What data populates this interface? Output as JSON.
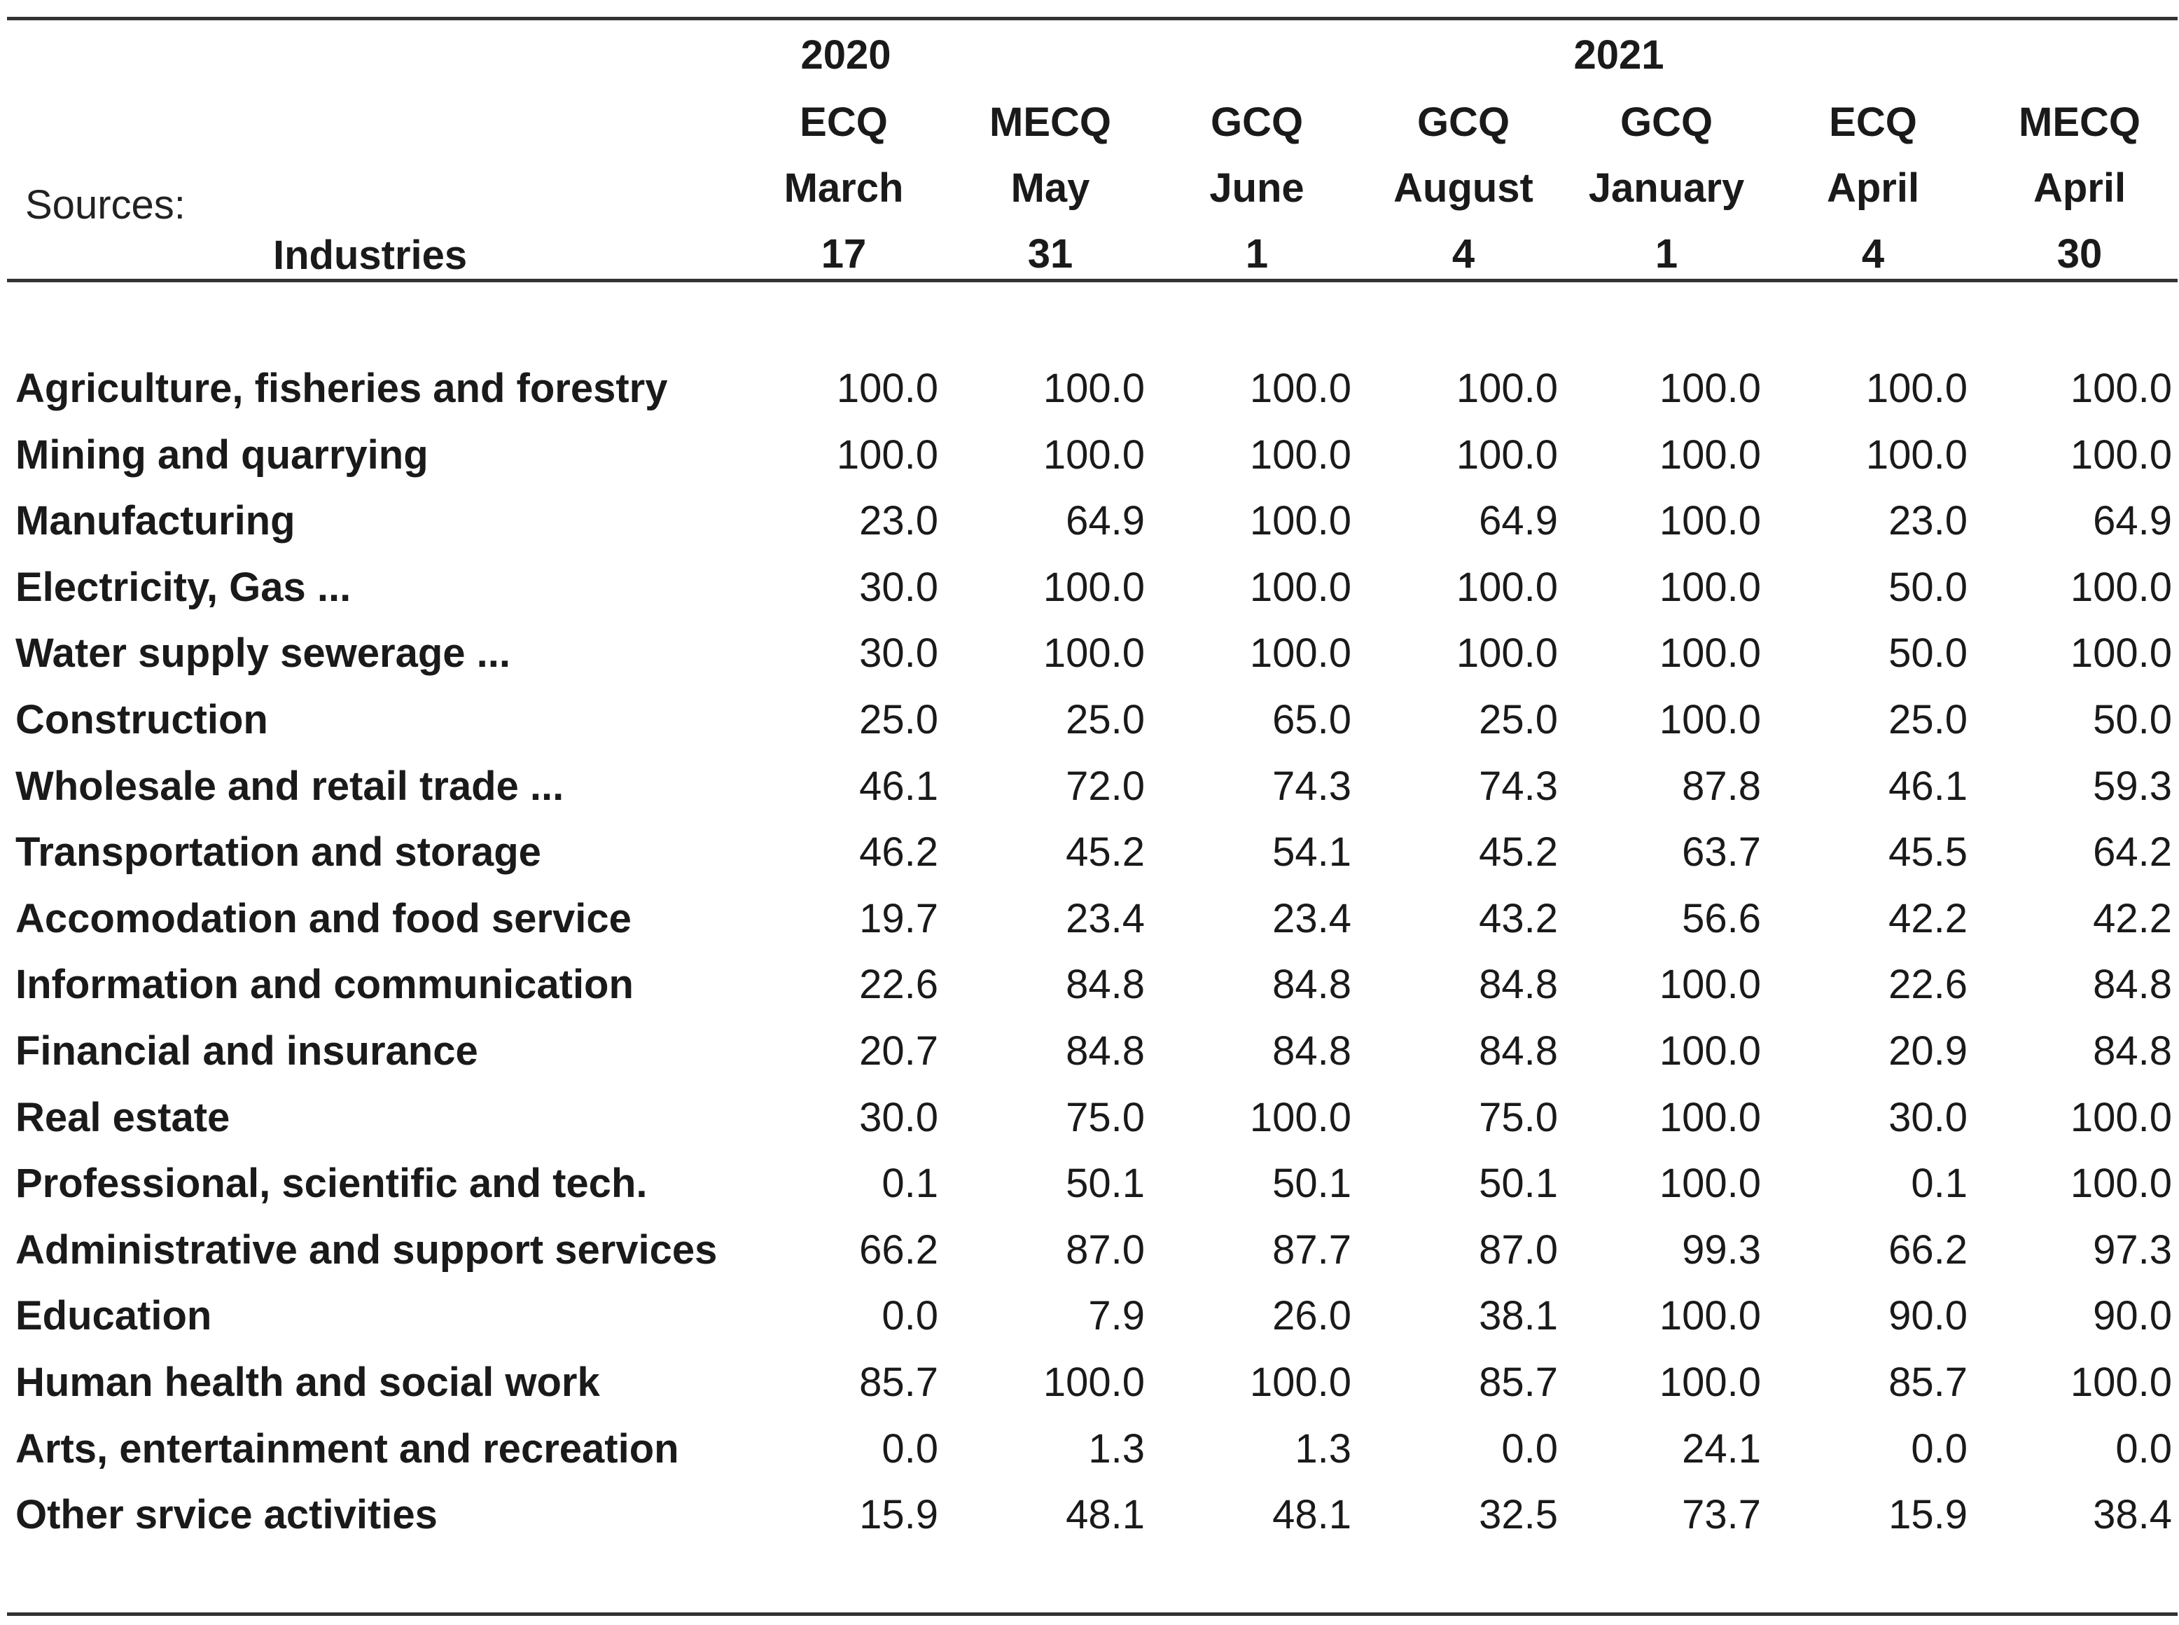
{
  "header": {
    "sources_label": "Sources:",
    "industries_label": "Industries",
    "years": [
      "2020",
      "2021"
    ]
  },
  "columns": [
    {
      "phase": "ECQ",
      "month": "March",
      "day": "17"
    },
    {
      "phase": "MECQ",
      "month": "May",
      "day": "31"
    },
    {
      "phase": "GCQ",
      "month": "June",
      "day": "1"
    },
    {
      "phase": "GCQ",
      "month": "August",
      "day": "4"
    },
    {
      "phase": "GCQ",
      "month": "January",
      "day": "1"
    },
    {
      "phase": "ECQ",
      "month": "April",
      "day": "4"
    },
    {
      "phase": "MECQ",
      "month": "April",
      "day": "30"
    }
  ],
  "rows": [
    {
      "industry": "Agriculture, fisheries and forestry",
      "values": [
        "100.0",
        "100.0",
        "100.0",
        "100.0",
        "100.0",
        "100.0",
        "100.0"
      ]
    },
    {
      "industry": "Mining and quarrying",
      "values": [
        "100.0",
        "100.0",
        "100.0",
        "100.0",
        "100.0",
        "100.0",
        "100.0"
      ]
    },
    {
      "industry": "Manufacturing",
      "values": [
        "23.0",
        "64.9",
        "100.0",
        "64.9",
        "100.0",
        "23.0",
        "64.9"
      ]
    },
    {
      "industry": "Electricity, Gas  ...",
      "values": [
        "30.0",
        "100.0",
        "100.0",
        "100.0",
        "100.0",
        "50.0",
        "100.0"
      ]
    },
    {
      "industry": "Water supply sewerage ...",
      "values": [
        "30.0",
        "100.0",
        "100.0",
        "100.0",
        "100.0",
        "50.0",
        "100.0"
      ]
    },
    {
      "industry": "Construction",
      "values": [
        "25.0",
        "25.0",
        "65.0",
        "25.0",
        "100.0",
        "25.0",
        "50.0"
      ]
    },
    {
      "industry": "Wholesale and retail trade ...",
      "values": [
        "46.1",
        "72.0",
        "74.3",
        "74.3",
        "87.8",
        "46.1",
        "59.3"
      ]
    },
    {
      "industry": "Transportation and storage",
      "values": [
        "46.2",
        "45.2",
        "54.1",
        "45.2",
        "63.7",
        "45.5",
        "64.2"
      ]
    },
    {
      "industry": "Accomodation and food service",
      "values": [
        "19.7",
        "23.4",
        "23.4",
        "43.2",
        "56.6",
        "42.2",
        "42.2"
      ]
    },
    {
      "industry": "Information and communication",
      "values": [
        "22.6",
        "84.8",
        "84.8",
        "84.8",
        "100.0",
        "22.6",
        "84.8"
      ]
    },
    {
      "industry": "Financial and insurance",
      "values": [
        "20.7",
        "84.8",
        "84.8",
        "84.8",
        "100.0",
        "20.9",
        "84.8"
      ]
    },
    {
      "industry": "Real estate",
      "values": [
        "30.0",
        "75.0",
        "100.0",
        "75.0",
        "100.0",
        "30.0",
        "100.0"
      ]
    },
    {
      "industry": "Professional, scientific and tech.",
      "values": [
        "0.1",
        "50.1",
        "50.1",
        "50.1",
        "100.0",
        "0.1",
        "100.0"
      ]
    },
    {
      "industry": "Administrative and support services",
      "values": [
        "66.2",
        "87.0",
        "87.7",
        "87.0",
        "99.3",
        "66.2",
        "97.3"
      ]
    },
    {
      "industry": "Education",
      "values": [
        "0.0",
        "7.9",
        "26.0",
        "38.1",
        "100.0",
        "90.0",
        "90.0"
      ]
    },
    {
      "industry": "Human health and social work",
      "values": [
        "85.7",
        "100.0",
        "100.0",
        "85.7",
        "100.0",
        "85.7",
        "100.0"
      ]
    },
    {
      "industry": "Arts, entertainment and recreation",
      "values": [
        "0.0",
        "1.3",
        "1.3",
        "0.0",
        "24.1",
        "0.0",
        "0.0"
      ]
    },
    {
      "industry": "Other srvice activities",
      "values": [
        "15.9",
        "48.1",
        "48.1",
        "32.5",
        "73.7",
        "15.9",
        "38.4"
      ]
    }
  ]
}
